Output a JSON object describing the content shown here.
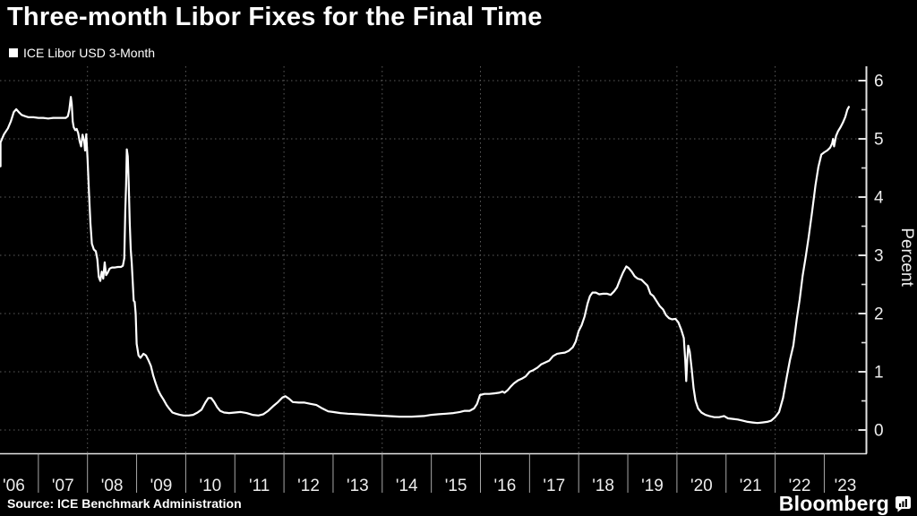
{
  "title": "Three-month Libor Fixes for the Final Time",
  "legend": {
    "swatch_color": "#ffffff",
    "label": "ICE Libor USD 3-Month"
  },
  "footer": {
    "source": "Source: ICE Benchmark Administration",
    "branding": "Bloomberg"
  },
  "colors": {
    "background": "#000000",
    "line": "#ffffff",
    "title_text": "#ffffff",
    "tick_text": "#ededed",
    "grid": "#5c5c5c",
    "axis": "#e3e3e3",
    "year_tick": "#a8a8a8"
  },
  "chart_data": {
    "type": "line",
    "title": "Three-month Libor Fixes for the Final Time",
    "xlabel": "",
    "ylabel": "Percent",
    "x_range_years": [
      2006.0,
      2023.5
    ],
    "ylim": [
      -0.45,
      6.25
    ],
    "y_ticks": [
      0,
      1,
      2,
      3,
      4,
      5,
      6
    ],
    "y_minor_ticks": [
      0.5,
      1.5,
      2.5,
      3.5,
      4.5,
      5.5
    ],
    "x_tick_labels": [
      "'06",
      "'07",
      "'08",
      "'09",
      "'10",
      "'11",
      "'12",
      "'13",
      "'14",
      "'15",
      "'16",
      "'17",
      "'18",
      "'19",
      "'20",
      "'21",
      "'22",
      "'23"
    ],
    "x_gridline_year_starts": [
      2008,
      2010,
      2012,
      2014,
      2016,
      2018,
      2020,
      2022
    ],
    "grid_style": "dotted",
    "legend_position": "top-left",
    "series": [
      {
        "name": "ICE Libor USD 3-Month",
        "color": "#ffffff",
        "points_year_percent": [
          [
            2006.04,
            4.53
          ],
          [
            2006.1,
            4.68
          ],
          [
            2006.16,
            4.82
          ],
          [
            2006.22,
            4.94
          ],
          [
            2006.3,
            5.08
          ],
          [
            2006.38,
            5.18
          ],
          [
            2006.44,
            5.3
          ],
          [
            2006.5,
            5.46
          ],
          [
            2006.55,
            5.51
          ],
          [
            2006.6,
            5.46
          ],
          [
            2006.66,
            5.41
          ],
          [
            2006.73,
            5.39
          ],
          [
            2006.8,
            5.37
          ],
          [
            2006.9,
            5.37
          ],
          [
            2007.0,
            5.36
          ],
          [
            2007.1,
            5.36
          ],
          [
            2007.2,
            5.35
          ],
          [
            2007.3,
            5.36
          ],
          [
            2007.4,
            5.36
          ],
          [
            2007.5,
            5.36
          ],
          [
            2007.56,
            5.36
          ],
          [
            2007.6,
            5.39
          ],
          [
            2007.63,
            5.5
          ],
          [
            2007.66,
            5.72
          ],
          [
            2007.68,
            5.6
          ],
          [
            2007.7,
            5.3
          ],
          [
            2007.72,
            5.2
          ],
          [
            2007.75,
            5.15
          ],
          [
            2007.78,
            5.17
          ],
          [
            2007.81,
            5.1
          ],
          [
            2007.84,
            4.96
          ],
          [
            2007.87,
            4.87
          ],
          [
            2007.9,
            5.07
          ],
          [
            2007.93,
            4.97
          ],
          [
            2007.95,
            4.8
          ],
          [
            2007.975,
            5.08
          ],
          [
            2008.0,
            4.68
          ],
          [
            2008.03,
            4.1
          ],
          [
            2008.06,
            3.55
          ],
          [
            2008.09,
            3.2
          ],
          [
            2008.13,
            3.1
          ],
          [
            2008.17,
            3.07
          ],
          [
            2008.2,
            2.93
          ],
          [
            2008.23,
            2.63
          ],
          [
            2008.26,
            2.56
          ],
          [
            2008.29,
            2.72
          ],
          [
            2008.32,
            2.6
          ],
          [
            2008.35,
            2.88
          ],
          [
            2008.38,
            2.66
          ],
          [
            2008.41,
            2.7
          ],
          [
            2008.45,
            2.77
          ],
          [
            2008.5,
            2.79
          ],
          [
            2008.56,
            2.79
          ],
          [
            2008.62,
            2.8
          ],
          [
            2008.68,
            2.8
          ],
          [
            2008.72,
            2.82
          ],
          [
            2008.75,
            2.95
          ],
          [
            2008.77,
            3.77
          ],
          [
            2008.785,
            4.2
          ],
          [
            2008.8,
            4.82
          ],
          [
            2008.82,
            4.7
          ],
          [
            2008.84,
            4.2
          ],
          [
            2008.86,
            3.55
          ],
          [
            2008.88,
            3.1
          ],
          [
            2008.9,
            2.87
          ],
          [
            2008.92,
            2.55
          ],
          [
            2008.94,
            2.22
          ],
          [
            2008.96,
            2.2
          ],
          [
            2008.98,
            2.0
          ],
          [
            2009.0,
            1.48
          ],
          [
            2009.04,
            1.28
          ],
          [
            2009.08,
            1.24
          ],
          [
            2009.14,
            1.31
          ],
          [
            2009.19,
            1.28
          ],
          [
            2009.24,
            1.2
          ],
          [
            2009.29,
            1.1
          ],
          [
            2009.34,
            0.93
          ],
          [
            2009.39,
            0.8
          ],
          [
            2009.44,
            0.68
          ],
          [
            2009.49,
            0.6
          ],
          [
            2009.55,
            0.52
          ],
          [
            2009.61,
            0.43
          ],
          [
            2009.67,
            0.36
          ],
          [
            2009.73,
            0.3
          ],
          [
            2009.8,
            0.28
          ],
          [
            2009.88,
            0.26
          ],
          [
            2009.96,
            0.25
          ],
          [
            2010.06,
            0.25
          ],
          [
            2010.15,
            0.26
          ],
          [
            2010.24,
            0.3
          ],
          [
            2010.32,
            0.35
          ],
          [
            2010.4,
            0.47
          ],
          [
            2010.46,
            0.55
          ],
          [
            2010.52,
            0.55
          ],
          [
            2010.58,
            0.48
          ],
          [
            2010.64,
            0.39
          ],
          [
            2010.7,
            0.33
          ],
          [
            2010.78,
            0.3
          ],
          [
            2010.88,
            0.29
          ],
          [
            2011.0,
            0.3
          ],
          [
            2011.12,
            0.31
          ],
          [
            2011.24,
            0.29
          ],
          [
            2011.36,
            0.26
          ],
          [
            2011.48,
            0.25
          ],
          [
            2011.58,
            0.27
          ],
          [
            2011.68,
            0.33
          ],
          [
            2011.78,
            0.41
          ],
          [
            2011.88,
            0.48
          ],
          [
            2011.97,
            0.56
          ],
          [
            2012.03,
            0.58
          ],
          [
            2012.1,
            0.54
          ],
          [
            2012.18,
            0.48
          ],
          [
            2012.3,
            0.47
          ],
          [
            2012.42,
            0.47
          ],
          [
            2012.54,
            0.45
          ],
          [
            2012.66,
            0.43
          ],
          [
            2012.78,
            0.37
          ],
          [
            2012.9,
            0.32
          ],
          [
            2013.0,
            0.31
          ],
          [
            2013.15,
            0.29
          ],
          [
            2013.3,
            0.28
          ],
          [
            2013.5,
            0.27
          ],
          [
            2013.7,
            0.26
          ],
          [
            2013.9,
            0.25
          ],
          [
            2014.1,
            0.24
          ],
          [
            2014.35,
            0.23
          ],
          [
            2014.6,
            0.23
          ],
          [
            2014.85,
            0.24
          ],
          [
            2015.0,
            0.26
          ],
          [
            2015.15,
            0.27
          ],
          [
            2015.3,
            0.28
          ],
          [
            2015.45,
            0.29
          ],
          [
            2015.58,
            0.31
          ],
          [
            2015.68,
            0.33
          ],
          [
            2015.78,
            0.33
          ],
          [
            2015.87,
            0.37
          ],
          [
            2015.93,
            0.45
          ],
          [
            2015.99,
            0.6
          ],
          [
            2016.08,
            0.62
          ],
          [
            2016.18,
            0.62
          ],
          [
            2016.28,
            0.63
          ],
          [
            2016.38,
            0.64
          ],
          [
            2016.45,
            0.66
          ],
          [
            2016.49,
            0.64
          ],
          [
            2016.55,
            0.68
          ],
          [
            2016.62,
            0.75
          ],
          [
            2016.68,
            0.8
          ],
          [
            2016.76,
            0.85
          ],
          [
            2016.84,
            0.88
          ],
          [
            2016.92,
            0.92
          ],
          [
            2017.0,
            1.0
          ],
          [
            2017.08,
            1.03
          ],
          [
            2017.16,
            1.07
          ],
          [
            2017.24,
            1.13
          ],
          [
            2017.32,
            1.16
          ],
          [
            2017.4,
            1.19
          ],
          [
            2017.48,
            1.27
          ],
          [
            2017.56,
            1.31
          ],
          [
            2017.64,
            1.32
          ],
          [
            2017.72,
            1.33
          ],
          [
            2017.8,
            1.36
          ],
          [
            2017.88,
            1.42
          ],
          [
            2017.94,
            1.52
          ],
          [
            2018.0,
            1.7
          ],
          [
            2018.06,
            1.8
          ],
          [
            2018.12,
            1.95
          ],
          [
            2018.18,
            2.17
          ],
          [
            2018.23,
            2.3
          ],
          [
            2018.28,
            2.36
          ],
          [
            2018.35,
            2.36
          ],
          [
            2018.42,
            2.33
          ],
          [
            2018.5,
            2.34
          ],
          [
            2018.58,
            2.34
          ],
          [
            2018.65,
            2.32
          ],
          [
            2018.72,
            2.38
          ],
          [
            2018.78,
            2.45
          ],
          [
            2018.84,
            2.58
          ],
          [
            2018.9,
            2.7
          ],
          [
            2018.97,
            2.81
          ],
          [
            2019.02,
            2.78
          ],
          [
            2019.08,
            2.72
          ],
          [
            2019.14,
            2.64
          ],
          [
            2019.2,
            2.6
          ],
          [
            2019.28,
            2.58
          ],
          [
            2019.34,
            2.53
          ],
          [
            2019.4,
            2.48
          ],
          [
            2019.46,
            2.34
          ],
          [
            2019.52,
            2.3
          ],
          [
            2019.58,
            2.22
          ],
          [
            2019.65,
            2.13
          ],
          [
            2019.72,
            2.07
          ],
          [
            2019.78,
            1.97
          ],
          [
            2019.84,
            1.92
          ],
          [
            2019.9,
            1.9
          ],
          [
            2019.97,
            1.91
          ],
          [
            2020.03,
            1.85
          ],
          [
            2020.09,
            1.72
          ],
          [
            2020.14,
            1.58
          ],
          [
            2020.17,
            1.2
          ],
          [
            2020.19,
            0.84
          ],
          [
            2020.21,
            1.2
          ],
          [
            2020.23,
            1.45
          ],
          [
            2020.26,
            1.35
          ],
          [
            2020.3,
            1.05
          ],
          [
            2020.34,
            0.72
          ],
          [
            2020.38,
            0.5
          ],
          [
            2020.43,
            0.37
          ],
          [
            2020.5,
            0.3
          ],
          [
            2020.58,
            0.26
          ],
          [
            2020.66,
            0.24
          ],
          [
            2020.76,
            0.22
          ],
          [
            2020.86,
            0.22
          ],
          [
            2020.96,
            0.24
          ],
          [
            2021.04,
            0.2
          ],
          [
            2021.14,
            0.19
          ],
          [
            2021.24,
            0.18
          ],
          [
            2021.34,
            0.16
          ],
          [
            2021.44,
            0.14
          ],
          [
            2021.54,
            0.13
          ],
          [
            2021.64,
            0.12
          ],
          [
            2021.74,
            0.13
          ],
          [
            2021.84,
            0.14
          ],
          [
            2021.92,
            0.16
          ],
          [
            2022.0,
            0.22
          ],
          [
            2022.08,
            0.31
          ],
          [
            2022.16,
            0.55
          ],
          [
            2022.24,
            0.93
          ],
          [
            2022.3,
            1.2
          ],
          [
            2022.37,
            1.45
          ],
          [
            2022.44,
            1.9
          ],
          [
            2022.5,
            2.24
          ],
          [
            2022.56,
            2.65
          ],
          [
            2022.62,
            2.96
          ],
          [
            2022.68,
            3.3
          ],
          [
            2022.75,
            3.73
          ],
          [
            2022.82,
            4.2
          ],
          [
            2022.88,
            4.52
          ],
          [
            2022.94,
            4.73
          ],
          [
            2023.0,
            4.77
          ],
          [
            2023.06,
            4.8
          ],
          [
            2023.12,
            4.85
          ],
          [
            2023.16,
            4.92
          ],
          [
            2023.18,
            5.0
          ],
          [
            2023.2,
            4.87
          ],
          [
            2023.24,
            5.05
          ],
          [
            2023.28,
            5.13
          ],
          [
            2023.33,
            5.2
          ],
          [
            2023.38,
            5.28
          ],
          [
            2023.43,
            5.38
          ],
          [
            2023.47,
            5.5
          ],
          [
            2023.5,
            5.55
          ]
        ]
      }
    ]
  }
}
